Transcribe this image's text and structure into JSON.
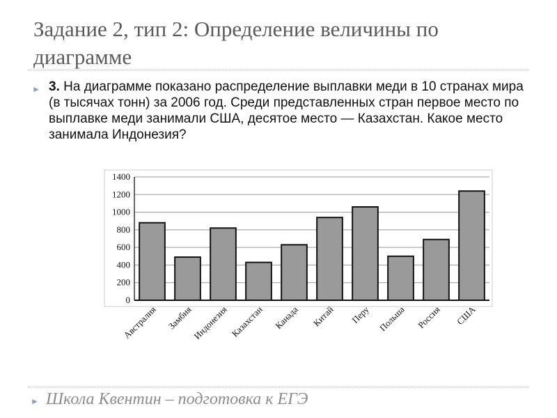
{
  "title": "Задание 2, тип 2: Определение величины по диаграмме",
  "task": {
    "number": "3.",
    "text": "На диаграмме показано распределение выплавки меди в 10 странах мира (в тысячах тонн) за 2006 год. Среди представленных стран первое место по выплавке меди занимали США, десятое место — Казахстан. Какое место занимала Индонезия?"
  },
  "footer": "Школа Квентин – подготовка к ЕГЭ",
  "chart_data": {
    "type": "bar",
    "categories": [
      "Австралия",
      "Замбия",
      "Индонезия",
      "Казахстан",
      "Канада",
      "Китай",
      "Перу",
      "Польша",
      "Россия",
      "США"
    ],
    "values": [
      880,
      490,
      820,
      430,
      630,
      940,
      1060,
      500,
      690,
      1240
    ],
    "yticks": [
      "0",
      "200",
      "400",
      "600",
      "800",
      "1000",
      "1200",
      "1400"
    ],
    "ylim": [
      0,
      1400
    ],
    "grid": true,
    "bar_color": "#9a9a9a"
  }
}
